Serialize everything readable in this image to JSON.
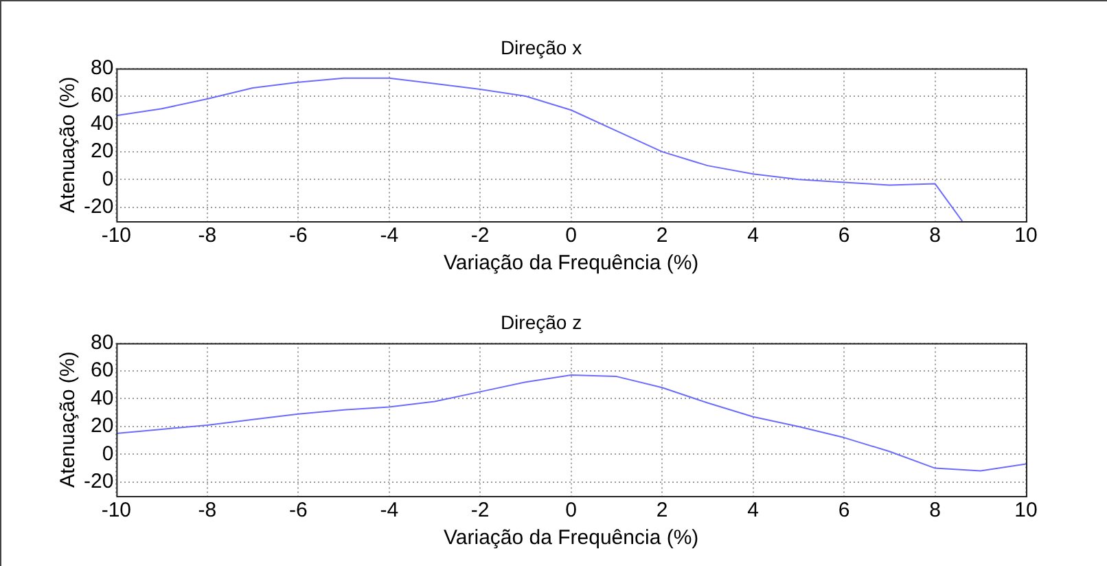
{
  "chart_data": [
    {
      "type": "line",
      "title": "Direção x",
      "xlabel": "Variação da Frequência (%)",
      "ylabel": "Atenuação (%)",
      "xlim": [
        -10,
        10
      ],
      "xticks": [
        -10,
        -8,
        -6,
        -4,
        -2,
        0,
        2,
        4,
        6,
        8,
        10
      ],
      "ylim": [
        -30,
        80
      ],
      "yticks": [
        -20,
        0,
        20,
        40,
        60,
        80
      ],
      "grid": true,
      "legend": false,
      "marker": "none",
      "line_style": "solid",
      "series": [
        {
          "color": "#6b6bff",
          "x": [
            -10,
            -9,
            -8,
            -7,
            -6,
            -5,
            -4,
            -3,
            -2,
            -1,
            0,
            1,
            2,
            3,
            4,
            5,
            6,
            7,
            8,
            8.6
          ],
          "values": [
            46,
            51,
            58,
            66,
            70,
            73,
            73,
            69,
            65,
            60,
            50,
            35,
            20,
            10,
            4,
            0,
            -2,
            -4,
            -3,
            -30
          ]
        }
      ]
    },
    {
      "type": "line",
      "title": "Direção z",
      "xlabel": "Variação da Frequência (%)",
      "ylabel": "Atenuação (%)",
      "xlim": [
        -10,
        10
      ],
      "xticks": [
        -10,
        -8,
        -6,
        -4,
        -2,
        0,
        2,
        4,
        6,
        8,
        10
      ],
      "ylim": [
        -30,
        80
      ],
      "yticks": [
        -20,
        0,
        20,
        40,
        60,
        80
      ],
      "grid": true,
      "legend": false,
      "marker": "none",
      "line_style": "solid",
      "series": [
        {
          "color": "#6b6bff",
          "x": [
            -10,
            -9,
            -8,
            -7,
            -6,
            -5,
            -4,
            -3,
            -2,
            -1,
            0,
            1,
            2,
            3,
            4,
            5,
            6,
            7,
            8,
            9,
            10
          ],
          "values": [
            15,
            18,
            21,
            25,
            29,
            32,
            34,
            38,
            45,
            52,
            57,
            56,
            48,
            37,
            27,
            20,
            12,
            2,
            -10,
            -12,
            -7
          ]
        }
      ]
    }
  ]
}
